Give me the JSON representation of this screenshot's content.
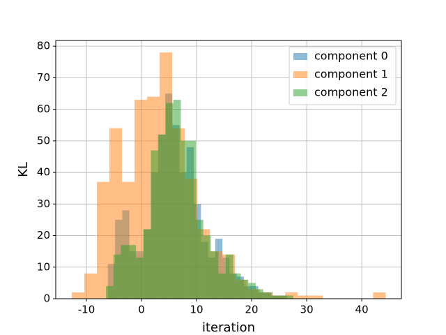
{
  "chart_data": {
    "type": "histogram",
    "xlabel": "iteration",
    "ylabel": "KL",
    "xlim": [
      -15.57,
      47.2
    ],
    "ylim": [
      0,
      81.8
    ],
    "xticks": [
      -10,
      0,
      10,
      20,
      30,
      40
    ],
    "yticks": [
      0,
      10,
      20,
      30,
      40,
      50,
      60,
      70,
      80
    ],
    "grid": true,
    "legend": "upper right",
    "opacity": 0.5,
    "series": [
      {
        "name": "component 0",
        "color": "#1f77b4",
        "bins": [
          -6.1,
          -4.8,
          -3.5,
          -2.2,
          -0.9,
          0.4,
          1.7,
          3.0,
          4.3,
          5.6,
          6.9,
          8.2,
          9.5,
          10.8,
          12.1,
          13.4,
          14.7,
          16.0,
          17.3,
          18.6,
          19.9,
          21.2,
          22.5,
          23.8,
          25.1,
          26.4
        ],
        "values": [
          11,
          25,
          28,
          15,
          15,
          22,
          40,
          52,
          65,
          55,
          40,
          48,
          30,
          18,
          13,
          19,
          13,
          8,
          7,
          4,
          4,
          2,
          2,
          1,
          1
        ]
      },
      {
        "name": "component 1",
        "color": "#ff7f0e",
        "bins": [
          -12.66,
          -10.38,
          -8.1,
          -5.82,
          -3.54,
          -1.26,
          1.02,
          3.3,
          5.58,
          7.86,
          10.14,
          12.42,
          14.7,
          16.98,
          19.26,
          21.54,
          23.82,
          26.1,
          28.38,
          30.66,
          32.94,
          35.22,
          37.5,
          39.78,
          42.06,
          44.34
        ],
        "values": [
          2,
          8,
          37,
          54,
          37,
          63,
          64,
          78,
          54,
          38,
          22,
          15,
          14,
          6,
          3,
          2,
          1,
          2,
          1,
          1,
          0,
          0,
          0,
          0,
          2
        ]
      },
      {
        "name": "component 2",
        "color": "#2ca02c",
        "bins": [
          -6.45,
          -5.09,
          -3.73,
          -2.37,
          -1.01,
          0.35,
          1.71,
          3.07,
          4.43,
          5.79,
          7.15,
          8.51,
          9.87,
          11.23,
          12.59,
          13.95,
          15.31,
          16.67,
          18.03,
          19.39,
          20.75,
          22.11,
          23.47,
          24.83,
          26.19,
          27.55
        ],
        "values": [
          4,
          14,
          17,
          17,
          13,
          22,
          47,
          52,
          62,
          63,
          50,
          50,
          25,
          20,
          15,
          8,
          14,
          8,
          6,
          5,
          3,
          2,
          1,
          1,
          1
        ]
      }
    ]
  }
}
